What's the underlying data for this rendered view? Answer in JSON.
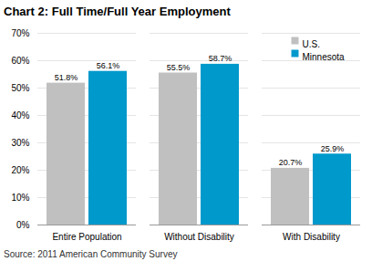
{
  "chart_data": {
    "type": "bar",
    "title": "Chart 2: Full Time/Full Year Employment",
    "source": "Source: 2011 American Community Survey",
    "categories": [
      "Entire Population",
      "Without Disability",
      "With Disability"
    ],
    "series": [
      {
        "name": "U.S.",
        "color": "#c0c0c0",
        "values": [
          51.8,
          55.5,
          20.7
        ],
        "value_labels": [
          "51.8%",
          "55.5%",
          "20.7%"
        ]
      },
      {
        "name": "Minnesota",
        "color": "#0099cc",
        "values": [
          56.1,
          58.7,
          25.9
        ],
        "value_labels": [
          "56.1%",
          "58.7%",
          "25.9%"
        ]
      }
    ],
    "ylim": [
      0,
      70
    ],
    "yticks": [
      {
        "value": 0,
        "label": "0%"
      },
      {
        "value": 10,
        "label": "10%"
      },
      {
        "value": 20,
        "label": "20%"
      },
      {
        "value": 30,
        "label": "30%"
      },
      {
        "value": 40,
        "label": "40%"
      },
      {
        "value": 50,
        "label": "50%"
      },
      {
        "value": 60,
        "label": "60%"
      },
      {
        "value": 70,
        "label": "70%"
      }
    ],
    "grid": true,
    "legend": "upper right",
    "data_labels": true
  }
}
